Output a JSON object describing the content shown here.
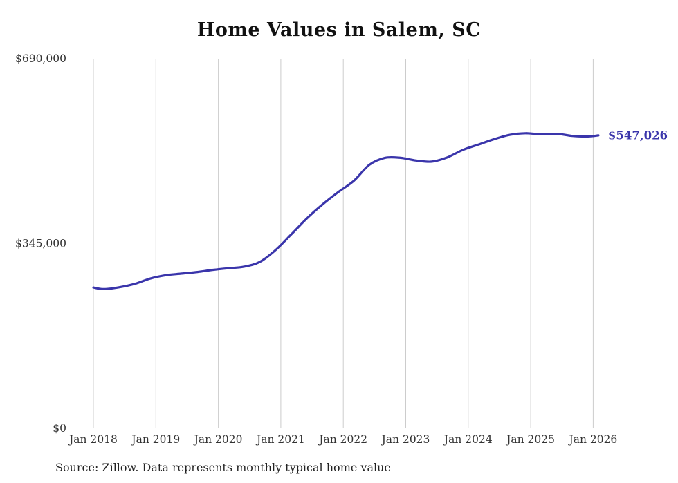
{
  "title": "Home Values in Salem, SC",
  "source_note": "Source: Zillow. Data represents monthly typical home value",
  "colors": {
    "line": "#3a35ab",
    "grid": "#cccccc",
    "axis_text": "#333333",
    "title_text": "#111111",
    "latest_label": "#3a35ab"
  },
  "chart_data": {
    "type": "line",
    "title": "Home Values in Salem, SC",
    "xlabel": "",
    "ylabel": "",
    "ylim": [
      0,
      690000
    ],
    "grid": "vertical",
    "legend": "none",
    "y_ticks": [
      {
        "value": 0,
        "label": "$0"
      },
      {
        "value": 345000,
        "label": "$345,000"
      },
      {
        "value": 690000,
        "label": "$690,000"
      }
    ],
    "x_ticks": [
      "Jan 2018",
      "Jan 2019",
      "Jan 2020",
      "Jan 2021",
      "Jan 2022",
      "Jan 2023",
      "Jan 2024",
      "Jan 2025",
      "Jan 2026"
    ],
    "series": [
      {
        "name": "Monthly typical home value",
        "points": [
          {
            "date": "2018-01",
            "value": 263000
          },
          {
            "date": "2018-03",
            "value": 260000
          },
          {
            "date": "2018-06",
            "value": 263500
          },
          {
            "date": "2018-09",
            "value": 270000
          },
          {
            "date": "2018-12",
            "value": 280000
          },
          {
            "date": "2019-03",
            "value": 286000
          },
          {
            "date": "2019-06",
            "value": 289000
          },
          {
            "date": "2019-09",
            "value": 292000
          },
          {
            "date": "2019-12",
            "value": 296000
          },
          {
            "date": "2020-03",
            "value": 299000
          },
          {
            "date": "2020-06",
            "value": 302000
          },
          {
            "date": "2020-09",
            "value": 311000
          },
          {
            "date": "2020-12",
            "value": 333000
          },
          {
            "date": "2021-03",
            "value": 362000
          },
          {
            "date": "2021-06",
            "value": 392000
          },
          {
            "date": "2021-09",
            "value": 418000
          },
          {
            "date": "2021-12",
            "value": 441000
          },
          {
            "date": "2022-03",
            "value": 462000
          },
          {
            "date": "2022-06",
            "value": 492000
          },
          {
            "date": "2022-09",
            "value": 505000
          },
          {
            "date": "2022-12",
            "value": 505000
          },
          {
            "date": "2023-03",
            "value": 500000
          },
          {
            "date": "2023-06",
            "value": 498000
          },
          {
            "date": "2023-09",
            "value": 506000
          },
          {
            "date": "2023-12",
            "value": 520000
          },
          {
            "date": "2024-03",
            "value": 530000
          },
          {
            "date": "2024-06",
            "value": 540000
          },
          {
            "date": "2024-09",
            "value": 548000
          },
          {
            "date": "2024-12",
            "value": 551000
          },
          {
            "date": "2025-03",
            "value": 549000
          },
          {
            "date": "2025-06",
            "value": 550000
          },
          {
            "date": "2025-09",
            "value": 546000
          },
          {
            "date": "2025-12",
            "value": 545000
          },
          {
            "date": "2026-02",
            "value": 547026
          }
        ]
      }
    ],
    "latest": {
      "date": "2026-02",
      "value": 547026,
      "label": "$547,026"
    }
  }
}
